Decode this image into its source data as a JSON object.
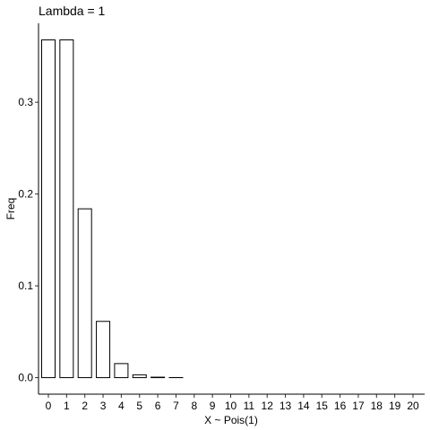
{
  "chart_data": {
    "type": "bar",
    "title": "Lambda = 1",
    "xlabel": "X ~ Pois(1)",
    "ylabel": "Freq",
    "categories": [
      "0",
      "1",
      "2",
      "3",
      "4",
      "5",
      "6",
      "7",
      "8",
      "9",
      "10",
      "11",
      "12",
      "13",
      "14",
      "15",
      "16",
      "17",
      "18",
      "19",
      "20"
    ],
    "values": [
      0.3679,
      0.3679,
      0.1839,
      0.0613,
      0.0153,
      0.0031,
      0.0005,
      0.0001,
      0.0,
      0.0,
      0.0,
      0.0,
      0.0,
      0.0,
      0.0,
      0.0,
      0.0,
      0.0,
      0.0,
      0.0,
      0.0
    ],
    "yticks": [
      "0.0",
      "0.1",
      "0.2",
      "0.3"
    ],
    "ytick_values": [
      0.0,
      0.1,
      0.2,
      0.3
    ],
    "ylim": [
      -0.018,
      0.386
    ],
    "grid": false,
    "legend": "none",
    "bar_fill": "#ffffff",
    "bar_stroke": "#000000"
  }
}
